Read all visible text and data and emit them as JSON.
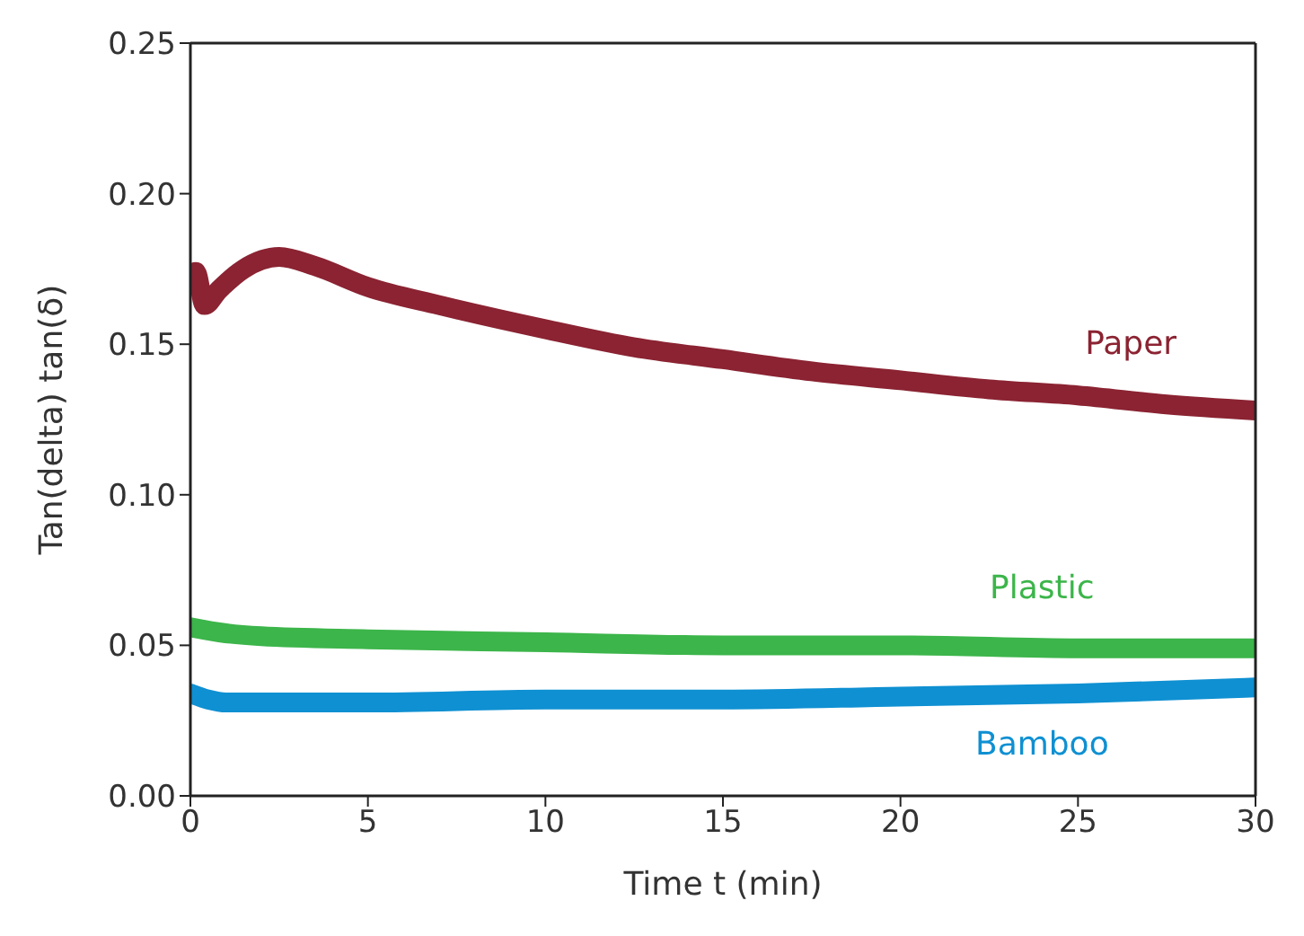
{
  "chart_data": {
    "type": "line",
    "xlabel": "Time t (min)",
    "ylabel": "Tan(delta) tan(δ)",
    "xlim": [
      0,
      30
    ],
    "xticks": [
      0,
      5,
      10,
      15,
      20,
      25,
      30
    ],
    "ylim": [
      0,
      0.25
    ],
    "yticks": [
      {
        "value": 0,
        "label": "0.00"
      },
      {
        "value": 0.05,
        "label": "0.05"
      },
      {
        "value": 0.1,
        "label": "0.10"
      },
      {
        "value": 0.15,
        "label": "0.15"
      },
      {
        "value": 0.2,
        "label": "0.20"
      },
      {
        "value": 0.25,
        "label": "0.25"
      }
    ],
    "marker": "none",
    "line_style": "solid",
    "series": [
      {
        "name": "Paper",
        "color": "#8b2332",
        "x": [
          0,
          0.15,
          0.4,
          0.8,
          1.5,
          2.5,
          3.5,
          5,
          7,
          10,
          12.5,
          15,
          17.5,
          20,
          22.5,
          25,
          27.5,
          30
        ],
        "values": [
          0.172,
          0.174,
          0.163,
          0.168,
          0.175,
          0.179,
          0.176,
          0.169,
          0.163,
          0.155,
          0.149,
          0.145,
          0.141,
          0.138,
          0.135,
          0.133,
          0.13,
          0.128
        ]
      },
      {
        "name": "Plastic",
        "color": "#3cb54a",
        "x": [
          0,
          1,
          2,
          5,
          10,
          15,
          20,
          25,
          30
        ],
        "values": [
          0.056,
          0.054,
          0.053,
          0.052,
          0.051,
          0.05,
          0.05,
          0.049,
          0.049
        ]
      },
      {
        "name": "Bamboo",
        "color": "#0f90d2",
        "x": [
          0,
          0.5,
          1,
          5,
          10,
          15,
          20,
          25,
          30
        ],
        "values": [
          0.034,
          0.032,
          0.031,
          0.031,
          0.032,
          0.032,
          0.033,
          0.034,
          0.036
        ]
      }
    ]
  }
}
